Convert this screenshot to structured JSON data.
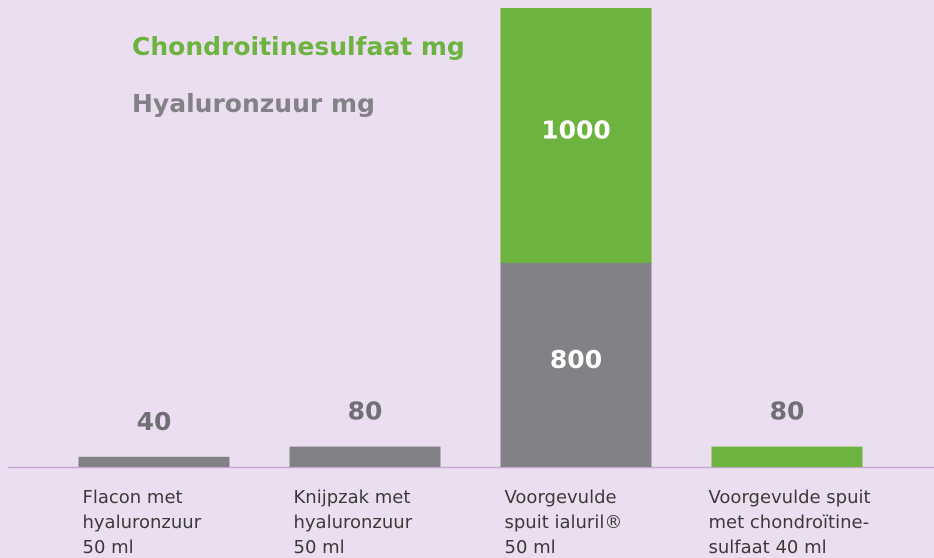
{
  "chart_data": {
    "type": "stacked_bar",
    "categories": [
      [
        "Flacon met",
        "hyaluronzuur",
        "50 ml"
      ],
      [
        "Knijpzak met",
        "hyaluronzuur",
        "50 ml"
      ],
      [
        "Voorgevulde",
        "spuit ialuril®",
        "50 ml"
      ],
      [
        "Voorgevulde spuit",
        "met chondroïtine-",
        "sulfaat 40 ml"
      ]
    ],
    "series": [
      {
        "name": "Hyaluronzuur mg",
        "color": "#818186",
        "values": [
          40,
          80,
          800,
          null
        ]
      },
      {
        "name": "Chondroitinesulfaat mg",
        "color": "#6db33f",
        "values": [
          null,
          null,
          1000,
          80
        ]
      }
    ],
    "ylim": [
      0,
      1800
    ]
  }
}
